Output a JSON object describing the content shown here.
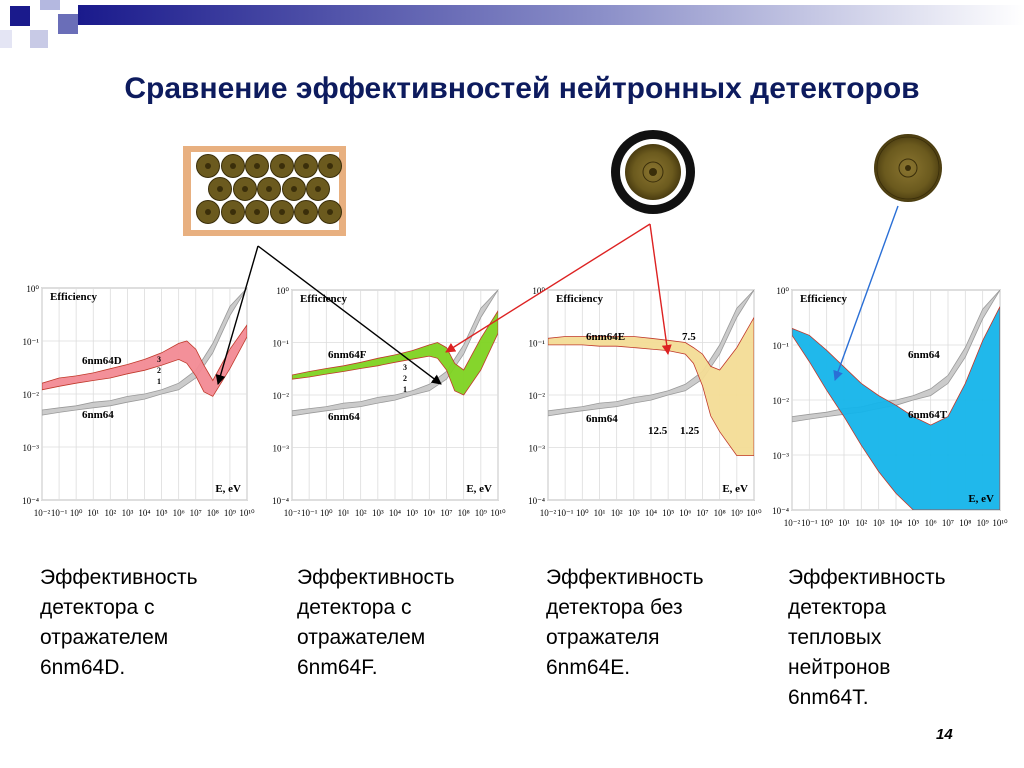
{
  "slide": {
    "title": "Сравнение эффективностей нейтронных детекторов",
    "page_number": "14",
    "colors": {
      "title": "#0d1b5e",
      "banner_dark": "#1a1a8c",
      "arrow_black": "#000000",
      "arrow_red": "#dd2222",
      "arrow_blue": "#2a6fd6"
    }
  },
  "captions": [
    [
      "Эффективность",
      "детектора с",
      "отражателем",
      "6nm64D."
    ],
    [
      "Эффективность",
      "детектора с",
      "отражателем",
      "6nm64F."
    ],
    [
      "Эффективность",
      "детектора без",
      "отражателя",
      "6nm64E."
    ],
    [
      "Эффективность",
      "детектора",
      "тепловых",
      "нейтронов",
      "6nm64T."
    ]
  ],
  "chart_data": [
    {
      "type": "line",
      "title": "Efficiency",
      "xlabel": "E, eV",
      "ylabel": "",
      "x_scale": "log",
      "y_scale": "log",
      "xlim": [
        0.01,
        10000000000
      ],
      "ylim": [
        0.0001,
        1
      ],
      "xticks": [
        "10⁻²",
        "10⁻¹",
        "10⁰",
        "10¹",
        "10²",
        "10³",
        "10⁴",
        "10⁵",
        "10⁶",
        "10⁷",
        "10⁸",
        "10⁹",
        "10¹⁰"
      ],
      "yticks": [
        "10⁰",
        "10⁻¹",
        "10⁻²",
        "10⁻³",
        "10⁻⁴"
      ],
      "grid": true,
      "annotations": [
        "3",
        "2",
        "1"
      ],
      "series": [
        {
          "name": "6nm64D",
          "color": "#f28a94",
          "x": [
            0.01,
            0.1,
            1,
            10,
            100,
            1000,
            10000,
            100000,
            1000000,
            3000000,
            10000000,
            30000000,
            100000000,
            1000000000,
            10000000000
          ],
          "lower": [
            0.012,
            0.014,
            0.016,
            0.018,
            0.02,
            0.024,
            0.028,
            0.035,
            0.045,
            0.038,
            0.022,
            0.011,
            0.009,
            0.03,
            0.12
          ],
          "upper": [
            0.016,
            0.02,
            0.022,
            0.025,
            0.03,
            0.036,
            0.045,
            0.06,
            0.09,
            0.1,
            0.07,
            0.035,
            0.018,
            0.07,
            0.2
          ]
        },
        {
          "name": "6nm64",
          "color": "#c8c8c8",
          "x": [
            0.01,
            0.1,
            1,
            10,
            100,
            1000,
            10000,
            100000,
            1000000,
            10000000,
            100000000,
            1000000000,
            10000000000
          ],
          "lower": [
            0.004,
            0.0045,
            0.005,
            0.0055,
            0.006,
            0.007,
            0.008,
            0.01,
            0.012,
            0.02,
            0.06,
            0.3,
            1
          ],
          "upper": [
            0.005,
            0.0055,
            0.006,
            0.007,
            0.0075,
            0.009,
            0.01,
            0.012,
            0.016,
            0.028,
            0.09,
            0.45,
            1
          ]
        }
      ]
    },
    {
      "type": "line",
      "title": "Efficiency",
      "xlabel": "E, eV",
      "ylabel": "",
      "x_scale": "log",
      "y_scale": "log",
      "xlim": [
        0.01,
        10000000000
      ],
      "ylim": [
        0.0001,
        1
      ],
      "xticks": [
        "10⁻²",
        "10⁻¹",
        "10⁰",
        "10¹",
        "10²",
        "10³",
        "10⁴",
        "10⁵",
        "10⁶",
        "10⁷",
        "10⁸",
        "10⁹",
        "10¹⁰"
      ],
      "yticks": [
        "10⁰",
        "10⁻¹",
        "10⁻²",
        "10⁻³",
        "10⁻⁴"
      ],
      "grid": true,
      "annotations": [
        "3",
        "2",
        "1"
      ],
      "series": [
        {
          "name": "6nm64F",
          "color": "#7ed321",
          "x": [
            0.01,
            0.1,
            1,
            10,
            100,
            1000,
            10000,
            100000,
            1000000,
            3000000,
            10000000,
            30000000,
            100000000,
            1000000000,
            10000000000
          ],
          "lower": [
            0.02,
            0.022,
            0.025,
            0.028,
            0.032,
            0.036,
            0.042,
            0.048,
            0.055,
            0.05,
            0.03,
            0.012,
            0.01,
            0.03,
            0.15
          ],
          "upper": [
            0.024,
            0.028,
            0.032,
            0.036,
            0.042,
            0.05,
            0.058,
            0.07,
            0.09,
            0.1,
            0.08,
            0.04,
            0.03,
            0.12,
            0.4
          ]
        },
        {
          "name": "6nm64",
          "color": "#c8c8c8",
          "x": [
            0.01,
            0.1,
            1,
            10,
            100,
            1000,
            10000,
            100000,
            1000000,
            10000000,
            100000000,
            1000000000,
            10000000000
          ],
          "lower": [
            0.004,
            0.0045,
            0.005,
            0.0055,
            0.006,
            0.007,
            0.008,
            0.01,
            0.012,
            0.02,
            0.06,
            0.3,
            1
          ],
          "upper": [
            0.005,
            0.0055,
            0.006,
            0.007,
            0.0075,
            0.009,
            0.01,
            0.012,
            0.016,
            0.028,
            0.09,
            0.45,
            1
          ]
        }
      ]
    },
    {
      "type": "line",
      "title": "Efficiency",
      "xlabel": "E, eV",
      "ylabel": "",
      "x_scale": "log",
      "y_scale": "log",
      "xlim": [
        0.01,
        10000000000
      ],
      "ylim": [
        0.0001,
        1
      ],
      "xticks": [
        "10⁻²",
        "10⁻¹",
        "10⁰",
        "10¹",
        "10²",
        "10³",
        "10⁴",
        "10⁵",
        "10⁶",
        "10⁷",
        "10⁸",
        "10⁹",
        "10¹⁰"
      ],
      "yticks": [
        "10⁰",
        "10⁻¹",
        "10⁻²",
        "10⁻³",
        "10⁻⁴"
      ],
      "grid": true,
      "annotations": [
        "7.5",
        "12.5",
        "1.25"
      ],
      "series": [
        {
          "name": "6nm64E",
          "color": "#f3dc96",
          "x": [
            0.01,
            0.1,
            1,
            10,
            100,
            1000,
            10000,
            100000,
            1000000,
            3000000,
            10000000,
            30000000,
            100000000,
            1000000000,
            10000000000
          ],
          "lower": [
            0.09,
            0.09,
            0.09,
            0.085,
            0.085,
            0.08,
            0.075,
            0.07,
            0.06,
            0.04,
            0.015,
            0.004,
            0.002,
            0.0007,
            0.0007
          ],
          "upper": [
            0.12,
            0.13,
            0.13,
            0.13,
            0.13,
            0.13,
            0.12,
            0.11,
            0.1,
            0.08,
            0.06,
            0.035,
            0.03,
            0.08,
            0.3
          ]
        },
        {
          "name": "6nm64",
          "color": "#c8c8c8",
          "x": [
            0.01,
            0.1,
            1,
            10,
            100,
            1000,
            10000,
            100000,
            1000000,
            10000000,
            100000000,
            1000000000,
            10000000000
          ],
          "lower": [
            0.004,
            0.0045,
            0.005,
            0.0055,
            0.006,
            0.007,
            0.008,
            0.01,
            0.012,
            0.02,
            0.06,
            0.3,
            1
          ],
          "upper": [
            0.005,
            0.0055,
            0.006,
            0.007,
            0.0075,
            0.009,
            0.01,
            0.012,
            0.016,
            0.028,
            0.09,
            0.45,
            1
          ]
        }
      ]
    },
    {
      "type": "line",
      "title": "Efficiency",
      "xlabel": "E, eV",
      "ylabel": "",
      "x_scale": "log",
      "y_scale": "log",
      "xlim": [
        0.01,
        10000000000
      ],
      "ylim": [
        0.0001,
        1
      ],
      "xticks": [
        "10⁻²",
        "10⁻¹",
        "10⁰",
        "10¹",
        "10²",
        "10³",
        "10⁴",
        "10⁵",
        "10⁶",
        "10⁷",
        "10⁸",
        "10⁹",
        "10¹⁰"
      ],
      "yticks": [
        "10⁰",
        "10⁻¹",
        "10⁻²",
        "10⁻³",
        "10⁻⁴"
      ],
      "grid": true,
      "annotations": [],
      "series": [
        {
          "name": "6nm64T",
          "color": "#14b4ea",
          "x": [
            0.01,
            0.1,
            1,
            10,
            100,
            1000,
            10000,
            100000,
            1000000,
            10000000,
            100000000,
            1000000000,
            10000000000
          ],
          "lower": [
            0.15,
            0.05,
            0.015,
            0.005,
            0.0015,
            0.0005,
            0.0002,
            0.0001,
            0.0001,
            0.0001,
            0.0001,
            0.0001,
            0.0001
          ],
          "upper": [
            0.2,
            0.15,
            0.08,
            0.04,
            0.02,
            0.012,
            0.008,
            0.005,
            0.0035,
            0.005,
            0.02,
            0.12,
            0.5
          ]
        },
        {
          "name": "6nm64",
          "color": "#c8c8c8",
          "x": [
            0.01,
            0.1,
            1,
            10,
            100,
            1000,
            10000,
            100000,
            1000000,
            10000000,
            100000000,
            1000000000,
            10000000000
          ],
          "lower": [
            0.004,
            0.0045,
            0.005,
            0.0055,
            0.006,
            0.007,
            0.008,
            0.01,
            0.012,
            0.02,
            0.06,
            0.3,
            1
          ],
          "upper": [
            0.005,
            0.0055,
            0.006,
            0.007,
            0.0075,
            0.009,
            0.01,
            0.012,
            0.016,
            0.028,
            0.09,
            0.45,
            1
          ]
        }
      ]
    }
  ]
}
